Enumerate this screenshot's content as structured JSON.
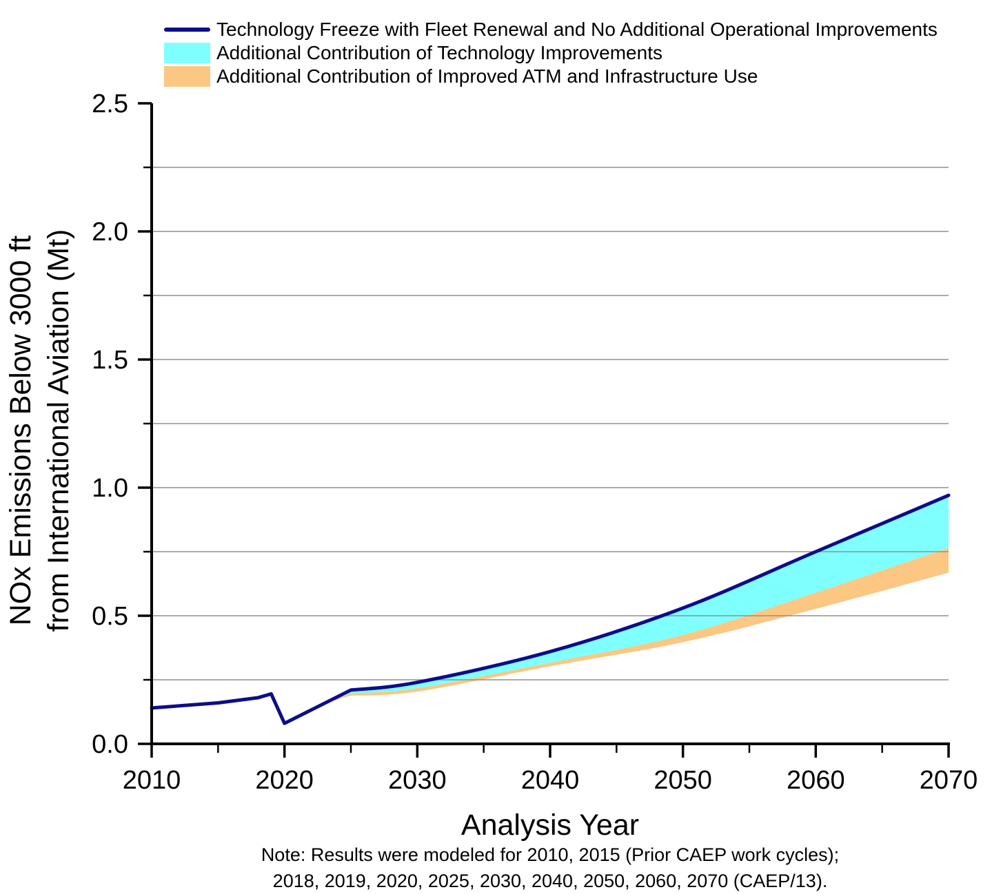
{
  "legend": {
    "items": [
      {
        "label": "Technology Freeze with Fleet Renewal and No Additional Operational Improvements",
        "swatch": "line",
        "color": "#0d0d8a"
      },
      {
        "label": "Additional Contribution of Technology Improvements",
        "swatch": "fill",
        "color": "#80ffff"
      },
      {
        "label": "Additional Contribution of Improved ATM and Infrastructure Use",
        "swatch": "fill",
        "color": "#fbc782"
      }
    ]
  },
  "note": {
    "line1": "Note: Results were modeled for 2010, 2015 (Prior CAEP work cycles);",
    "line2": "2018, 2019, 2020, 2025, 2030, 2040, 2050, 2060, 2070 (CAEP/13)."
  },
  "chart_data": {
    "type": "line+area",
    "xlabel": "Analysis Year",
    "ylabel_line1": "NOx Emissions Below 3000 ft",
    "ylabel_line2": "from International Aviation (Mt)",
    "xlim": [
      2010,
      2070
    ],
    "ylim": [
      0,
      2.5
    ],
    "x_major_ticks": [
      {
        "v": 2010,
        "label": "2010"
      },
      {
        "v": 2020,
        "label": "2020"
      },
      {
        "v": 2030,
        "label": "2030"
      },
      {
        "v": 2040,
        "label": "2040"
      },
      {
        "v": 2050,
        "label": "2050"
      },
      {
        "v": 2060,
        "label": "2060"
      },
      {
        "v": 2070,
        "label": "2070"
      }
    ],
    "x_minor_ticks": [
      2015,
      2025,
      2035,
      2045,
      2055,
      2065
    ],
    "y_major_ticks": [
      {
        "v": 0.0,
        "label": "0.0"
      },
      {
        "v": 0.5,
        "label": "0.5"
      },
      {
        "v": 1.0,
        "label": "1.0"
      },
      {
        "v": 1.5,
        "label": "1.5"
      },
      {
        "v": 2.0,
        "label": "2.0"
      },
      {
        "v": 2.5,
        "label": "2.5"
      }
    ],
    "y_minor_ticks": [
      0.25,
      0.75,
      1.25,
      1.75,
      2.25
    ],
    "gridlines_y": [
      0.25,
      0.5,
      0.75,
      1.0,
      1.25,
      1.5,
      1.75,
      2.0,
      2.25
    ],
    "grid_color": "#8f8f8f",
    "axis_color": "#000000",
    "smooth_from_year": 2025,
    "series": [
      {
        "name": "Technology Freeze with Fleet Renewal and No Additional Operational Improvements",
        "type": "line",
        "color": "#0d0d8a",
        "width": 5,
        "x": [
          2010,
          2015,
          2018,
          2019,
          2020,
          2025,
          2030,
          2040,
          2050,
          2060,
          2070
        ],
        "y": [
          0.14,
          0.16,
          0.18,
          0.195,
          0.08,
          0.21,
          0.24,
          0.36,
          0.53,
          0.75,
          0.97
        ]
      },
      {
        "name": "Additional Contribution of Technology Improvements",
        "type": "area",
        "color": "#80ffff",
        "x": [
          2023,
          2025,
          2030,
          2040,
          2050,
          2060,
          2070
        ],
        "y_top": [
          0.158,
          0.21,
          0.24,
          0.36,
          0.53,
          0.75,
          0.97
        ],
        "y_bottom": [
          0.158,
          0.197,
          0.217,
          0.317,
          0.425,
          0.59,
          0.765
        ]
      },
      {
        "name": "Additional Contribution of Improved ATM and Infrastructure Use",
        "type": "area",
        "color": "#fbc782",
        "x": [
          2023,
          2025,
          2030,
          2040,
          2050,
          2060,
          2070
        ],
        "y_top": [
          0.158,
          0.197,
          0.217,
          0.317,
          0.425,
          0.59,
          0.765
        ],
        "y_bottom": [
          0.158,
          0.188,
          0.204,
          0.303,
          0.397,
          0.527,
          0.668
        ]
      }
    ]
  }
}
